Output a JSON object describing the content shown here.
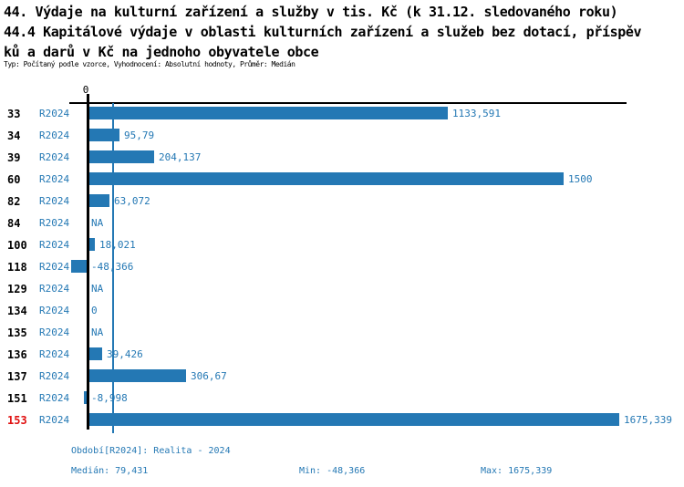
{
  "header": {
    "title_line1": "44. Výdaje na kulturní zařízení a služby v tis. Kč (k 31.12. sledovaného roku)",
    "title_line2": "44.4 Kapitálové výdaje v oblasti kulturních zařízení a služeb bez dotací, příspěv",
    "title_line3": "ků a darů v Kč na jednoho obyvatele obce",
    "meta": "Typ: Počítaný podle vzorce, Vyhodnocení: Absolutní hodnoty, Průměr: Medián"
  },
  "chart_data": {
    "type": "bar",
    "orientation": "horizontal",
    "title": "44. Výdaje na kulturní zařízení a služby v tis. Kč (k 31.12. sledovaného roku)",
    "subtitle": "44.4 Kapitálové výdaje v oblasti kulturních zařízení a služeb bez dotací, příspěvků a darů v Kč na jednoho obyvatele obce",
    "series_name": "R2024",
    "axis": {
      "zero_label": "0",
      "xlim": [
        -60,
        1700
      ],
      "median_line_value": 79.431,
      "grid": false
    },
    "rows": [
      {
        "category": "33",
        "period": "R2024",
        "value": 1133.591,
        "value_label": "1133,591",
        "highlight": false
      },
      {
        "category": "34",
        "period": "R2024",
        "value": 95.79,
        "value_label": "95,79",
        "highlight": false
      },
      {
        "category": "39",
        "period": "R2024",
        "value": 204.137,
        "value_label": "204,137",
        "highlight": false
      },
      {
        "category": "60",
        "period": "R2024",
        "value": 1500,
        "value_label": "1500",
        "highlight": false
      },
      {
        "category": "82",
        "period": "R2024",
        "value": 63.072,
        "value_label": "63,072",
        "highlight": false
      },
      {
        "category": "84",
        "period": "R2024",
        "value": null,
        "value_label": "NA",
        "highlight": false
      },
      {
        "category": "100",
        "period": "R2024",
        "value": 18.021,
        "value_label": "18,021",
        "highlight": false
      },
      {
        "category": "118",
        "period": "R2024",
        "value": -48.366,
        "value_label": "-48,366",
        "highlight": false
      },
      {
        "category": "129",
        "period": "R2024",
        "value": null,
        "value_label": "NA",
        "highlight": false
      },
      {
        "category": "134",
        "period": "R2024",
        "value": 0,
        "value_label": "0",
        "highlight": false
      },
      {
        "category": "135",
        "period": "R2024",
        "value": null,
        "value_label": "NA",
        "highlight": false
      },
      {
        "category": "136",
        "period": "R2024",
        "value": 39.426,
        "value_label": "39,426",
        "highlight": false
      },
      {
        "category": "137",
        "period": "R2024",
        "value": 306.67,
        "value_label": "306,67",
        "highlight": false
      },
      {
        "category": "151",
        "period": "R2024",
        "value": -8.998,
        "value_label": "-8,998",
        "highlight": false
      },
      {
        "category": "153",
        "period": "R2024",
        "value": 1675.339,
        "value_label": "1675,339",
        "highlight": true
      }
    ]
  },
  "footer": {
    "period_info": "Období[R2024]: Realita - 2024",
    "median_label": "Medián: 79,431",
    "min_label": "Min: -48,366",
    "max_label": "Max: 1675,339"
  },
  "colors": {
    "bar_blue": "#2478b4",
    "text_blue": "#2478b4",
    "highlight_red": "#e01010",
    "axis_black": "#000000"
  }
}
